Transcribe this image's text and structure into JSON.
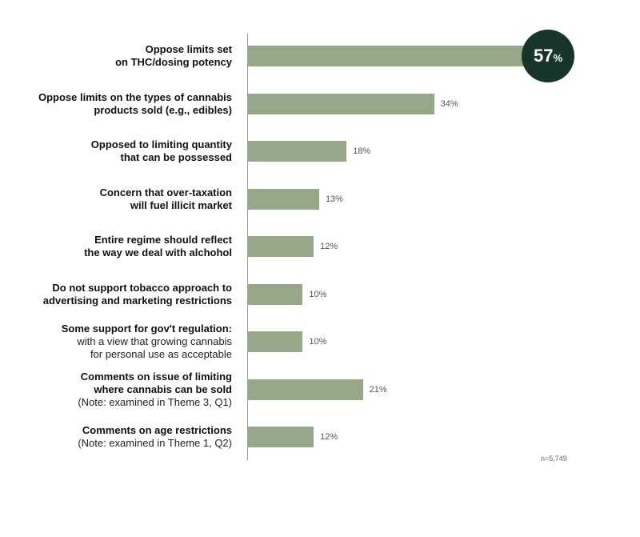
{
  "chart_data": {
    "type": "bar",
    "orientation": "horizontal",
    "xlim": [
      0,
      57
    ],
    "categories": [
      {
        "lines": [
          {
            "text": "Oppose limits set",
            "bold": true
          },
          {
            "text": "on THC/dosing potency",
            "bold": true
          }
        ],
        "value": 57,
        "label": "57%"
      },
      {
        "lines": [
          {
            "text": "Oppose limits on the types of cannabis",
            "bold": true
          },
          {
            "text": "products sold (e.g., edibles)",
            "bold": true
          }
        ],
        "value": 34,
        "label": "34%"
      },
      {
        "lines": [
          {
            "text": "Opposed to limiting quantity",
            "bold": true
          },
          {
            "text": "that can be possessed",
            "bold": true
          }
        ],
        "value": 18,
        "label": "18%"
      },
      {
        "lines": [
          {
            "text": "Concern that over-taxation",
            "bold": true
          },
          {
            "text": "will fuel illicit market",
            "bold": true
          }
        ],
        "value": 13,
        "label": "13%"
      },
      {
        "lines": [
          {
            "text": "Entire regime should reflect",
            "bold": true
          },
          {
            "text": "the way we deal with alchohol",
            "bold": true
          }
        ],
        "value": 12,
        "label": "12%"
      },
      {
        "lines": [
          {
            "text": "Do not support tobacco approach to",
            "bold": true
          },
          {
            "text": "advertising and marketing restrictions",
            "bold": true
          }
        ],
        "value": 10,
        "label": "10%"
      },
      {
        "lines": [
          {
            "text": "Some support for gov't regulation:",
            "bold": true
          },
          {
            "text": "with a view that growing cannabis",
            "bold": false
          },
          {
            "text": "for personal use as acceptable",
            "bold": false
          }
        ],
        "value": 10,
        "label": "10%"
      },
      {
        "lines": [
          {
            "text": "Comments on issue of limiting",
            "bold": true
          },
          {
            "text": "where cannabis can be sold",
            "bold": true
          },
          {
            "text": "(Note: examined in Theme 3, Q1)",
            "bold": false
          }
        ],
        "value": 21,
        "label": "21%"
      },
      {
        "lines": [
          {
            "text": "Comments on age restrictions",
            "bold": true
          },
          {
            "text": "(Note: examined in Theme 1, Q2)",
            "bold": false
          }
        ],
        "value": 12,
        "label": "12%"
      }
    ],
    "highlight": {
      "number": "57",
      "unit": "%"
    },
    "note": "n=5,749"
  },
  "colors": {
    "bar": "#97a88a",
    "badge": "#17352a",
    "axis": "#9a9a9a"
  }
}
